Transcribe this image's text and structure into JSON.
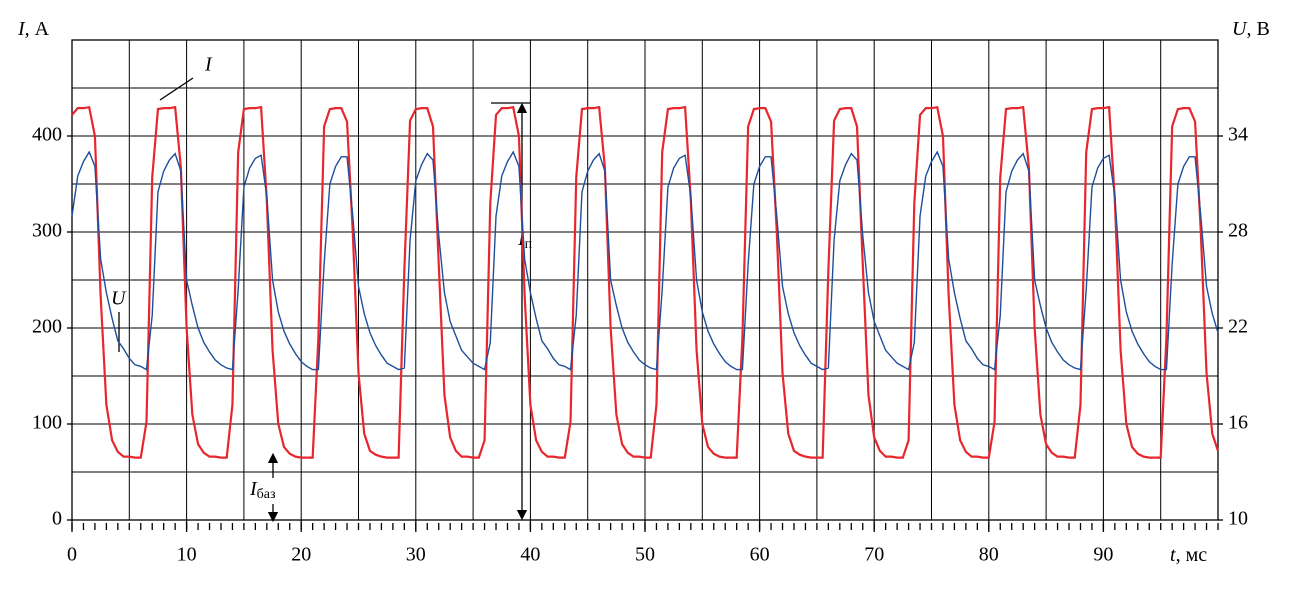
{
  "chart_data": {
    "type": "line",
    "xlabel": {
      "symbol": "t",
      "unit": ", мс"
    },
    "ylabel": {
      "symbol": "I",
      "unit": ", А"
    },
    "y2label": {
      "symbol": "U",
      "unit": ", В"
    },
    "xlim": [
      0,
      100
    ],
    "xticks": [
      0,
      10,
      20,
      30,
      40,
      50,
      60,
      70,
      80,
      90
    ],
    "ylim": [
      0,
      500
    ],
    "yticks": [
      0,
      100,
      200,
      300,
      400
    ],
    "y2lim": [
      10,
      40
    ],
    "y2ticks": [
      10,
      16,
      22,
      28,
      34
    ],
    "grid": true,
    "xgrid_step": 5,
    "ygrid_step": 50,
    "xminor_step": 1,
    "annotations": [
      {
        "text": "I",
        "subscript": "п"
      },
      {
        "text": "I",
        "subscript": "баз"
      }
    ],
    "x": [
      0,
      0.5,
      1,
      1.5,
      2,
      2.5,
      3,
      3.5,
      4,
      4.5,
      5,
      5.5,
      6,
      6.5,
      7,
      7.5,
      8,
      8.5,
      9,
      9.5,
      10,
      10.5,
      11,
      11.5,
      12,
      12.5,
      13,
      13.5,
      14,
      14.5,
      15,
      15.5,
      16,
      16.5,
      17,
      17.5,
      18,
      18.5,
      19,
      19.5,
      20,
      20.5,
      21,
      21.5,
      22,
      22.5,
      23,
      23.5,
      24,
      24.5,
      25,
      25.5,
      26,
      26.5,
      27,
      27.5,
      28,
      28.5,
      29,
      29.5,
      30,
      30.5,
      31,
      31.5,
      32,
      32.5,
      33,
      33.5,
      34,
      34.5,
      35,
      35.5,
      36,
      36.5,
      37,
      37.5,
      38,
      38.5,
      39,
      39.5,
      40,
      40.5,
      41,
      41.5,
      42,
      42.5,
      43,
      43.5,
      44,
      44.5,
      45,
      45.5,
      46,
      46.5,
      47,
      47.5,
      48,
      48.5,
      49,
      49.5,
      50,
      50.5,
      51,
      51.5,
      52,
      52.5,
      53,
      53.5,
      54,
      54.5,
      55,
      55.5,
      56,
      56.5,
      57,
      57.5,
      58,
      58.5,
      59,
      59.5,
      60,
      60.5,
      61,
      61.5,
      62,
      62.5,
      63,
      63.5,
      64,
      64.5,
      65,
      65.5,
      66,
      66.5,
      67,
      67.5,
      68,
      68.5,
      69,
      69.5,
      70,
      70.5,
      71,
      71.5,
      72,
      72.5,
      73,
      73.5,
      74,
      74.5,
      75,
      75.5,
      76,
      76.5,
      77,
      77.5,
      78,
      78.5,
      79,
      79.5,
      80,
      80.5,
      81,
      81.5,
      82,
      82.5,
      83,
      83.5,
      84,
      84.5,
      85,
      85.5,
      86,
      86.5,
      87,
      87.5,
      88,
      88.5,
      89,
      89.5,
      90,
      90.5,
      91,
      91.5,
      92,
      92.5,
      93,
      93.5,
      94,
      94.5,
      95,
      95.5,
      96,
      96.5,
      97,
      97.5,
      98,
      98.5,
      99,
      99.5,
      100
    ],
    "series": [
      {
        "name": "I",
        "color": "#e8262d",
        "values": [
          422,
          429,
          429,
          430,
          400,
          233,
          120,
          83,
          71,
          66,
          66,
          65,
          65,
          102,
          357,
          428,
          429,
          429,
          430,
          367,
          200,
          110,
          79,
          70,
          66,
          66,
          65,
          65,
          120,
          383,
          428,
          429,
          429,
          430,
          333,
          177,
          100,
          76,
          69,
          66,
          65,
          65,
          65,
          190,
          410,
          428,
          429,
          429,
          415,
          300,
          153,
          90,
          72,
          68,
          66,
          65,
          65,
          65,
          260,
          416,
          428,
          429,
          429,
          410,
          267,
          130,
          86,
          72,
          66,
          66,
          65,
          65,
          83,
          330,
          422,
          429,
          429,
          430,
          400,
          233,
          120,
          83,
          71,
          66,
          66,
          65,
          65,
          102,
          357,
          428,
          429,
          429,
          430,
          367,
          200,
          110,
          79,
          70,
          66,
          66,
          65,
          65,
          120,
          383,
          428,
          429,
          429,
          430,
          333,
          177,
          100,
          76,
          69,
          66,
          65,
          65,
          65,
          190,
          410,
          428,
          429,
          429,
          415,
          300,
          153,
          90,
          72,
          68,
          66,
          65,
          65,
          65,
          260,
          416,
          428,
          429,
          429,
          410,
          267,
          130,
          86,
          72,
          66,
          66,
          65,
          65,
          83,
          330,
          422,
          429,
          429,
          430,
          400,
          233,
          120,
          83,
          71,
          66,
          66,
          65,
          65,
          102,
          357,
          428,
          429,
          429,
          430,
          367,
          200,
          110,
          79,
          70,
          66,
          66,
          65,
          65,
          120,
          383,
          428,
          429,
          429,
          430,
          333,
          177,
          100,
          76,
          69,
          66,
          65,
          65,
          65,
          190,
          410,
          428,
          429,
          429,
          415,
          300,
          153,
          90,
          72
        ]
      },
      {
        "name": "U",
        "color": "#1f4e9c",
        "axis": "y2",
        "values": [
          29,
          31.5,
          32.4,
          33,
          32.1,
          26.3,
          24.2,
          22.6,
          21.2,
          20.7,
          20.1,
          19.7,
          19.6,
          19.4,
          22.8,
          30.5,
          31.8,
          32.5,
          32.9,
          31.8,
          25,
          23.4,
          22,
          21.1,
          20.5,
          20,
          19.7,
          19.5,
          19.4,
          24.4,
          30.8,
          32,
          32.6,
          32.8,
          30.2,
          25,
          23,
          21.8,
          21,
          20.4,
          19.9,
          19.6,
          19.4,
          19.4,
          26,
          31,
          32.1,
          32.7,
          32.7,
          29,
          24.6,
          22.9,
          21.7,
          20.9,
          20.3,
          19.8,
          19.6,
          19.4,
          19.5,
          27.5,
          31.2,
          32.2,
          32.9,
          32.5,
          27.8,
          24.2,
          22.4,
          21.5,
          20.6,
          20.2,
          19.8,
          19.6,
          19.4,
          21.1,
          29,
          31.5,
          32.4,
          33,
          32.1,
          26.3,
          24.2,
          22.6,
          21.2,
          20.7,
          20.1,
          19.7,
          19.6,
          19.4,
          22.8,
          30.5,
          31.8,
          32.5,
          32.9,
          31.8,
          25,
          23.4,
          22,
          21.1,
          20.5,
          20,
          19.7,
          19.5,
          19.4,
          24.4,
          30.8,
          32,
          32.6,
          32.8,
          30.2,
          25,
          23,
          21.8,
          21,
          20.4,
          19.9,
          19.6,
          19.4,
          19.4,
          26,
          31,
          32.1,
          32.7,
          32.7,
          29,
          24.6,
          22.9,
          21.7,
          20.9,
          20.3,
          19.8,
          19.6,
          19.4,
          19.5,
          27.5,
          31.2,
          32.2,
          32.9,
          32.5,
          27.8,
          24.2,
          22.4,
          21.5,
          20.6,
          20.2,
          19.8,
          19.6,
          19.4,
          21.1,
          29,
          31.5,
          32.4,
          33,
          32.1,
          26.3,
          24.2,
          22.6,
          21.2,
          20.7,
          20.1,
          19.7,
          19.6,
          19.4,
          22.8,
          30.5,
          31.8,
          32.5,
          32.9,
          31.8,
          25,
          23.4,
          22,
          21.1,
          20.5,
          20,
          19.7,
          19.5,
          19.4,
          24.4,
          30.8,
          32,
          32.6,
          32.8,
          30.2,
          25,
          23,
          21.8,
          21,
          20.4,
          19.9,
          19.6,
          19.4,
          19.4,
          26,
          31,
          32.1,
          32.7,
          32.7,
          29,
          24.6,
          22.9,
          21.7
        ]
      }
    ]
  }
}
